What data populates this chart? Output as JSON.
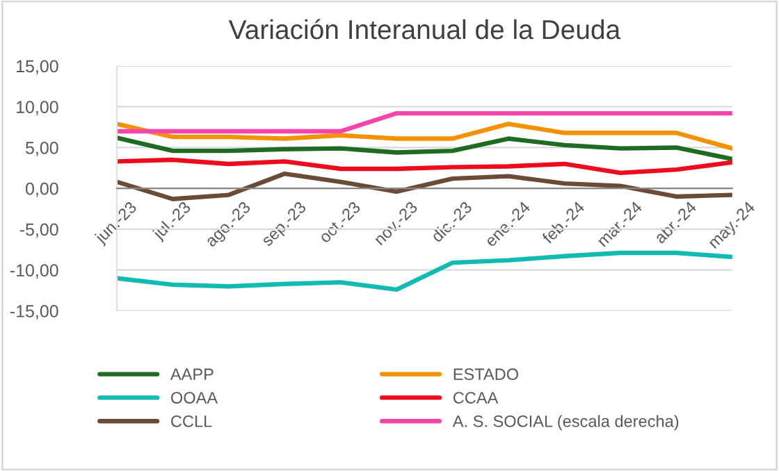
{
  "chart_data": {
    "type": "line",
    "title": "Variación Interanual de la Deuda",
    "categories": [
      "jun.-23",
      "jul.-23",
      "ago.-23",
      "sep.-23",
      "oct.-23",
      "nov.-23",
      "dic.-23",
      "ene.-24",
      "feb.-24",
      "mar.-24",
      "abr.-24",
      "may.-24"
    ],
    "series": [
      {
        "name": "AAPP",
        "color": "#1f6b21",
        "values": [
          6.2,
          4.6,
          4.6,
          4.8,
          4.9,
          4.4,
          4.6,
          6.1,
          5.3,
          4.9,
          5.0,
          3.6
        ]
      },
      {
        "name": "ESTADO",
        "color": "#f39200",
        "values": [
          7.9,
          6.3,
          6.3,
          6.1,
          6.5,
          6.1,
          6.1,
          7.9,
          6.8,
          6.8,
          6.8,
          4.9
        ]
      },
      {
        "name": "OOAA",
        "color": "#12bab2",
        "values": [
          -11.0,
          -11.8,
          -12.0,
          -11.7,
          -11.5,
          -12.4,
          -9.1,
          -8.8,
          -8.3,
          -7.9,
          -7.9,
          -8.4
        ]
      },
      {
        "name": "CCAA",
        "color": "#ec0c1c",
        "values": [
          3.3,
          3.5,
          3.0,
          3.3,
          2.4,
          2.4,
          2.6,
          2.7,
          3.0,
          1.9,
          2.3,
          3.2
        ]
      },
      {
        "name": "CCLL",
        "color": "#6b4a36",
        "values": [
          0.8,
          -1.3,
          -0.8,
          1.8,
          0.8,
          -0.4,
          1.2,
          1.5,
          0.6,
          0.3,
          -1.0,
          -0.8
        ]
      },
      {
        "name": "A. S. SOCIAL (escala derecha)",
        "color": "#f545a8",
        "values": [
          7.0,
          7.0,
          7.0,
          7.0,
          7.0,
          9.2,
          9.2,
          9.2,
          9.2,
          9.2,
          9.2,
          9.2
        ]
      }
    ],
    "ylim": [
      -15,
      15
    ],
    "yticks": [
      {
        "value": -15,
        "label": "-15,00"
      },
      {
        "value": -10,
        "label": "-10,00"
      },
      {
        "value": -5,
        "label": "-5,00"
      },
      {
        "value": 0,
        "label": "0,00"
      },
      {
        "value": 5,
        "label": "5,00"
      },
      {
        "value": 10,
        "label": "10,00"
      },
      {
        "value": 15,
        "label": "15,00"
      }
    ],
    "grid": "y",
    "legend": "bottom",
    "marker": "none",
    "line_style": "solid"
  }
}
